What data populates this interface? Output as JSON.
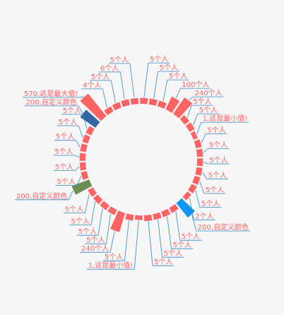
{
  "chart_data": {
    "type": "pie",
    "variant": "rose-donut",
    "title": "",
    "default_color": "#ff6363",
    "label_color": "#ff6363",
    "leader_color": "#2f86c4",
    "slices": [
      {
        "label": "5个人",
        "value": 5
      },
      {
        "label": "5个人",
        "value": 5
      },
      {
        "label": "5个人",
        "value": 5
      },
      {
        "label": "100个人",
        "value": 100
      },
      {
        "label": "240个人",
        "value": 240
      },
      {
        "label": "5个人",
        "value": 5
      },
      {
        "label": "5个人",
        "value": 5
      },
      {
        "label": "1,这是最小值!",
        "value": 1
      },
      {
        "label": "5个人",
        "value": 5
      },
      {
        "label": "5个人",
        "value": 5
      },
      {
        "label": "5个人",
        "value": 5
      },
      {
        "label": "5个人",
        "value": 5
      },
      {
        "label": "5个人",
        "value": 5
      },
      {
        "label": "5个人",
        "value": 5
      },
      {
        "label": "2个人",
        "value": 2
      },
      {
        "label": "200,自定义颜色",
        "value": 200,
        "color": "#1096ee"
      },
      {
        "label": "5个人",
        "value": 5
      },
      {
        "label": "5个人",
        "value": 5
      },
      {
        "label": "5个人",
        "value": 5
      },
      {
        "label": "5个人",
        "value": 5
      },
      {
        "label": "1,这是最小值!",
        "value": 1
      },
      {
        "label": "5个人",
        "value": 5
      },
      {
        "label": "240个人",
        "value": 240
      },
      {
        "label": "5个人",
        "value": 5
      },
      {
        "label": "5个人",
        "value": 5
      },
      {
        "label": "5个人",
        "value": 5
      },
      {
        "label": "5个人",
        "value": 5
      },
      {
        "label": "200,自定义颜色",
        "value": 200,
        "color": "#6b8f54"
      },
      {
        "label": "5个人",
        "value": 5
      },
      {
        "label": "5个人",
        "value": 5
      },
      {
        "label": "5个人",
        "value": 5
      },
      {
        "label": "5个人",
        "value": 5
      },
      {
        "label": "5个人",
        "value": 5
      },
      {
        "label": "5个人",
        "value": 5
      },
      {
        "label": "200,自定义颜色",
        "value": 200,
        "color": "#3366a6"
      },
      {
        "label": "570,这是最大值!",
        "value": 570
      },
      {
        "label": "4个人",
        "value": 4
      },
      {
        "label": "5个人",
        "value": 5
      },
      {
        "label": "6个人",
        "value": 6
      },
      {
        "label": "5个人",
        "value": 5
      }
    ]
  }
}
